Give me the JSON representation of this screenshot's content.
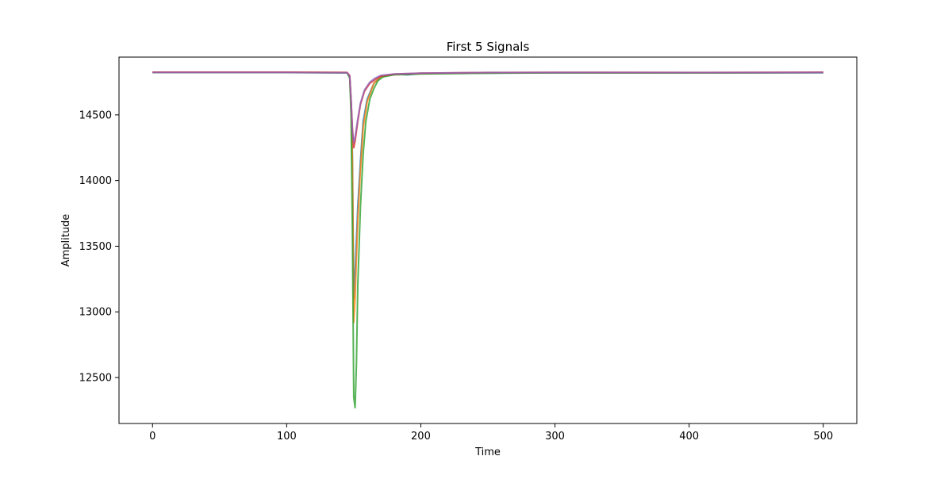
{
  "chart_data": {
    "type": "line",
    "title": "First 5 Signals",
    "xlabel": "Time",
    "ylabel": "Amplitude",
    "xlim": [
      -25,
      525
    ],
    "ylim": [
      12150,
      14940
    ],
    "xticks": [
      0,
      100,
      200,
      300,
      400,
      500
    ],
    "yticks": [
      12500,
      13000,
      13500,
      14000,
      14500
    ],
    "grid": false,
    "legend": "none",
    "series": [
      {
        "color": "#1f77b4",
        "points": [
          [
            0,
            14823
          ],
          [
            100,
            14823
          ],
          [
            145,
            14821
          ],
          [
            147,
            14790
          ],
          [
            148,
            14600
          ],
          [
            149,
            14200
          ],
          [
            150,
            13100
          ],
          [
            151,
            13300
          ],
          [
            153,
            13800
          ],
          [
            155,
            14150
          ],
          [
            157,
            14450
          ],
          [
            160,
            14620
          ],
          [
            165,
            14740
          ],
          [
            170,
            14790
          ],
          [
            180,
            14810
          ],
          [
            190,
            14805
          ],
          [
            200,
            14815
          ],
          [
            250,
            14818
          ],
          [
            300,
            14820
          ],
          [
            400,
            14819
          ],
          [
            500,
            14821
          ]
        ]
      },
      {
        "color": "#ff7f0e",
        "points": [
          [
            0,
            14824
          ],
          [
            100,
            14824
          ],
          [
            145,
            14822
          ],
          [
            147,
            14785
          ],
          [
            148,
            14580
          ],
          [
            149,
            14150
          ],
          [
            150,
            12920
          ],
          [
            151,
            13100
          ],
          [
            153,
            13700
          ],
          [
            155,
            14080
          ],
          [
            157,
            14400
          ],
          [
            160,
            14600
          ],
          [
            165,
            14740
          ],
          [
            170,
            14790
          ],
          [
            180,
            14808
          ],
          [
            200,
            14815
          ],
          [
            250,
            14820
          ],
          [
            300,
            14822
          ],
          [
            400,
            14821
          ],
          [
            500,
            14822
          ]
        ]
      },
      {
        "color": "#2ca02c",
        "points": [
          [
            0,
            14822
          ],
          [
            100,
            14822
          ],
          [
            145,
            14820
          ],
          [
            147,
            14780
          ],
          [
            148,
            14500
          ],
          [
            149,
            13600
          ],
          [
            150,
            12350
          ],
          [
            151,
            12270
          ],
          [
            152,
            12600
          ],
          [
            153,
            13200
          ],
          [
            155,
            13800
          ],
          [
            157,
            14200
          ],
          [
            159,
            14450
          ],
          [
            162,
            14620
          ],
          [
            165,
            14700
          ],
          [
            168,
            14760
          ],
          [
            172,
            14790
          ],
          [
            180,
            14805
          ],
          [
            200,
            14812
          ],
          [
            250,
            14818
          ],
          [
            300,
            14820
          ],
          [
            400,
            14820
          ],
          [
            500,
            14822
          ]
        ]
      },
      {
        "color": "#d62728",
        "points": [
          [
            0,
            14825
          ],
          [
            100,
            14825
          ],
          [
            145,
            14823
          ],
          [
            147,
            14800
          ],
          [
            148,
            14620
          ],
          [
            149,
            14400
          ],
          [
            150,
            14250
          ],
          [
            151,
            14300
          ],
          [
            153,
            14450
          ],
          [
            155,
            14580
          ],
          [
            158,
            14680
          ],
          [
            162,
            14740
          ],
          [
            166,
            14770
          ],
          [
            170,
            14795
          ],
          [
            180,
            14810
          ],
          [
            200,
            14818
          ],
          [
            250,
            14823
          ],
          [
            300,
            14824
          ],
          [
            400,
            14823
          ],
          [
            500,
            14825
          ]
        ]
      },
      {
        "color": "#9467bd",
        "points": [
          [
            0,
            14823
          ],
          [
            100,
            14823
          ],
          [
            145,
            14821
          ],
          [
            147,
            14795
          ],
          [
            148,
            14610
          ],
          [
            149,
            14380
          ],
          [
            150,
            14290
          ],
          [
            151,
            14330
          ],
          [
            153,
            14470
          ],
          [
            155,
            14590
          ],
          [
            158,
            14690
          ],
          [
            162,
            14750
          ],
          [
            166,
            14780
          ],
          [
            170,
            14800
          ],
          [
            180,
            14812
          ],
          [
            200,
            14818
          ],
          [
            250,
            14822
          ],
          [
            300,
            14823
          ],
          [
            400,
            14822
          ],
          [
            500,
            14823
          ]
        ]
      }
    ]
  }
}
